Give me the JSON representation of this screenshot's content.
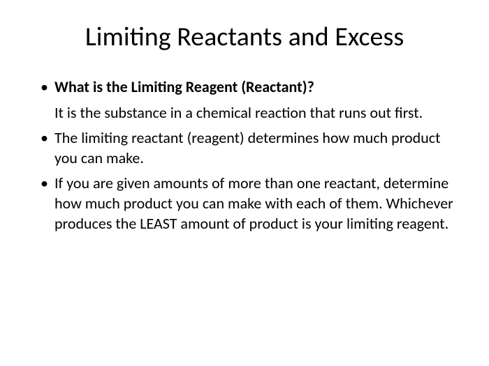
{
  "title": "Limiting Reactants and Excess",
  "bullets": {
    "item1_question": "What is the Limiting Reagent (Reactant)?",
    "item1_answer": "It is the substance in a chemical reaction that runs out first.",
    "item2": "The limiting reactant (reagent) determines how much product you can make.",
    "item3": "If you are given amounts of more than one reactant, determine how much product you can make with each of them. Whichever produces the LEAST amount of product is your limiting reagent."
  },
  "styling": {
    "background_color": "#ffffff",
    "text_color": "#000000",
    "title_fontsize": 38,
    "body_fontsize": 22,
    "font_family": "Calibri"
  }
}
